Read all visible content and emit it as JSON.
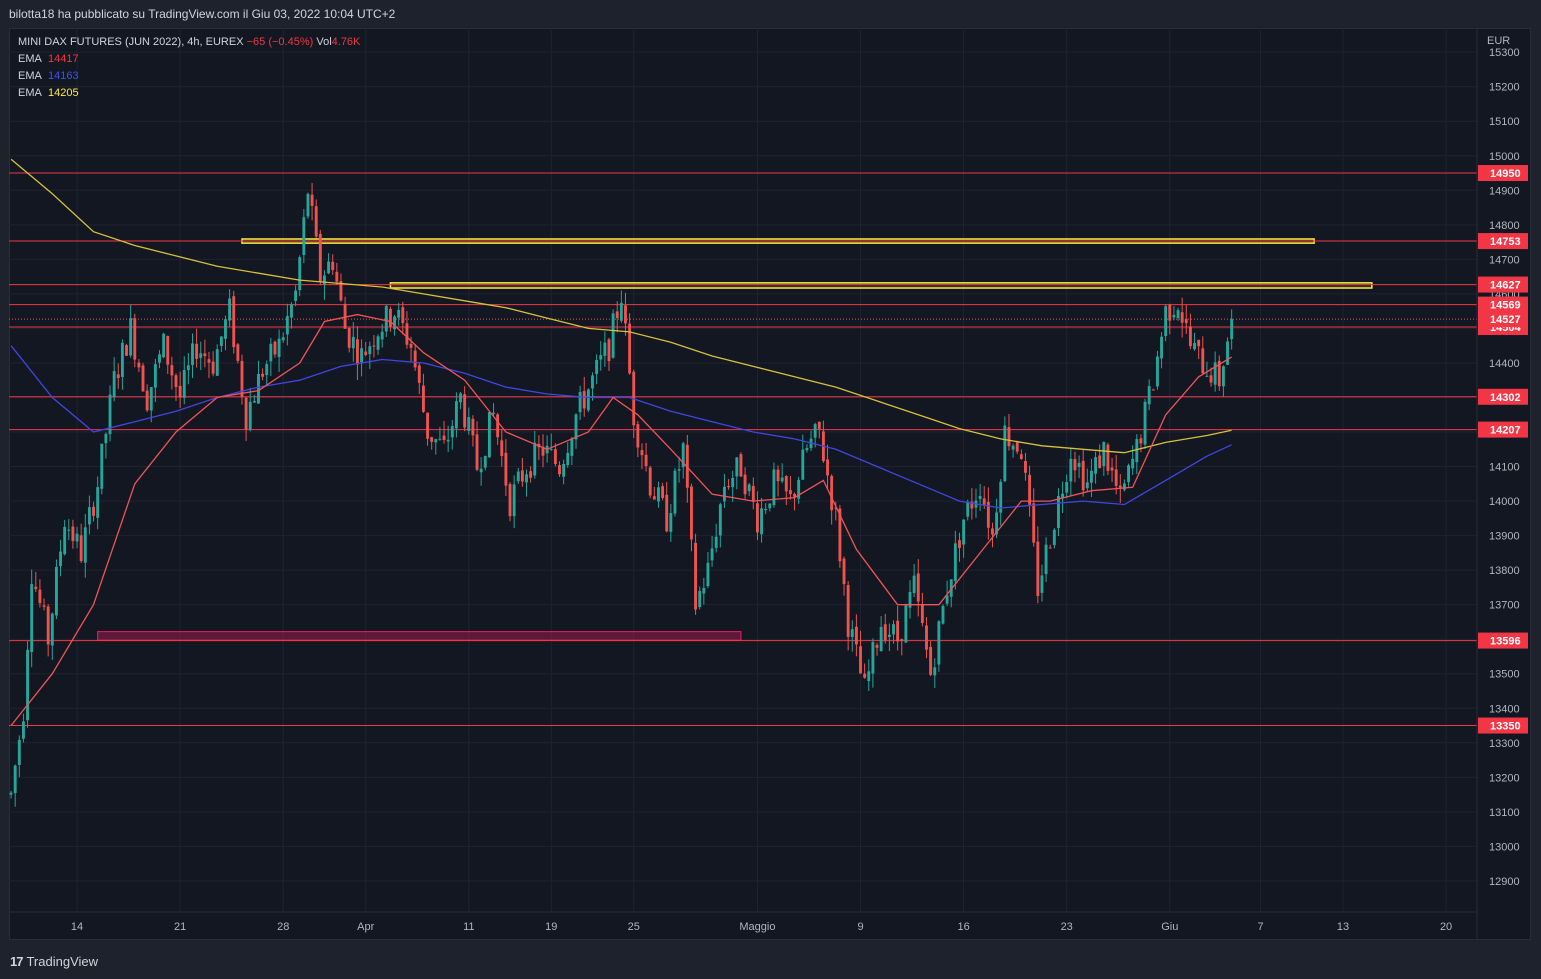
{
  "header": {
    "published_text": "bilotta18 ha pubblicato su TradingView.com il Giu 03, 2022 10:04 UTC+2"
  },
  "legend": {
    "symbol": "MINI DAX FUTURES (JUN 2022), 4h, EUREX",
    "change": "−65 (−0.45%)",
    "vol_label": "Vol",
    "vol_value": "4.76K",
    "emas": [
      {
        "label": "EMA",
        "value": "14417",
        "color": "#f23645"
      },
      {
        "label": "EMA",
        "value": "14163",
        "color": "#3f51f5"
      },
      {
        "label": "EMA",
        "value": "14205",
        "color": "#ffeb3b"
      }
    ]
  },
  "footer": {
    "brand": "TradingView",
    "logo_glyph": "17"
  },
  "colors": {
    "background": "#131722",
    "up": "#26a69a",
    "down": "#ef5350",
    "grid": "#1f2330",
    "hline": "#f23645",
    "ema_fast": "#f05458",
    "ema_mid": "#3f47e0",
    "ema_slow": "#d6c13a",
    "zone_yellow": "#ffeb3b",
    "zone_pink": "#e91e63"
  },
  "chart_data": {
    "type": "candlestick",
    "currency_label": "EUR",
    "ylim": [
      12810,
      15370
    ],
    "y_ticks": [
      12900,
      13000,
      13100,
      13200,
      13300,
      13400,
      13500,
      13600,
      13700,
      13800,
      13900,
      14000,
      14100,
      14200,
      14300,
      14400,
      14500,
      14600,
      14700,
      14800,
      14900,
      15000,
      15100,
      15200,
      15300
    ],
    "x_ticks": [
      "14",
      "21",
      "28",
      "Apr",
      "11",
      "19",
      "25",
      "Maggio",
      "9",
      "16",
      "23",
      "Giu",
      "7",
      "13",
      "20"
    ],
    "x_tick_bars": [
      16,
      41,
      66,
      86,
      111,
      131,
      151,
      181,
      206,
      231,
      256,
      281,
      303,
      323,
      348
    ],
    "bar_count_visible": 356,
    "horizontal_levels": [
      14950,
      14753,
      14627,
      14569,
      14504,
      14302,
      14207,
      13596,
      13350
    ],
    "current_price": 14527,
    "zones": [
      {
        "color": "yellow",
        "start_bar": 56,
        "end_bar": 316,
        "low": 14747,
        "high": 14759
      },
      {
        "color": "yellow",
        "start_bar": 92,
        "end_bar": 330,
        "low": 14617,
        "high": 14632
      },
      {
        "color": "pink",
        "start_bar": 21,
        "end_bar": 177,
        "low": 13597,
        "high": 13622
      }
    ],
    "price_path": [
      [
        0,
        13150
      ],
      [
        3,
        13400
      ],
      [
        5,
        13800
      ],
      [
        9,
        13600
      ],
      [
        13,
        13950
      ],
      [
        17,
        13850
      ],
      [
        21,
        14050
      ],
      [
        25,
        14350
      ],
      [
        29,
        14500
      ],
      [
        33,
        14300
      ],
      [
        37,
        14450
      ],
      [
        41,
        14300
      ],
      [
        45,
        14450
      ],
      [
        49,
        14400
      ],
      [
        53,
        14550
      ],
      [
        57,
        14250
      ],
      [
        61,
        14380
      ],
      [
        65,
        14450
      ],
      [
        69,
        14600
      ],
      [
        72,
        14900
      ],
      [
        75,
        14650
      ],
      [
        78,
        14700
      ],
      [
        81,
        14500
      ],
      [
        85,
        14420
      ],
      [
        89,
        14500
      ],
      [
        93,
        14550
      ],
      [
        97,
        14450
      ],
      [
        101,
        14200
      ],
      [
        105,
        14150
      ],
      [
        109,
        14300
      ],
      [
        113,
        14100
      ],
      [
        117,
        14250
      ],
      [
        121,
        14000
      ],
      [
        125,
        14100
      ],
      [
        129,
        14150
      ],
      [
        133,
        14100
      ],
      [
        137,
        14250
      ],
      [
        141,
        14350
      ],
      [
        145,
        14450
      ],
      [
        148,
        14600
      ],
      [
        151,
        14250
      ],
      [
        155,
        14050
      ],
      [
        159,
        13950
      ],
      [
        163,
        14150
      ],
      [
        166,
        13700
      ],
      [
        169,
        13800
      ],
      [
        173,
        14050
      ],
      [
        177,
        14100
      ],
      [
        181,
        13950
      ],
      [
        185,
        14050
      ],
      [
        189,
        14000
      ],
      [
        193,
        14150
      ],
      [
        196,
        14200
      ],
      [
        200,
        13950
      ],
      [
        203,
        13650
      ],
      [
        207,
        13450
      ],
      [
        211,
        13650
      ],
      [
        215,
        13600
      ],
      [
        219,
        13750
      ],
      [
        223,
        13500
      ],
      [
        227,
        13750
      ],
      [
        231,
        13950
      ],
      [
        235,
        14050
      ],
      [
        238,
        13900
      ],
      [
        241,
        14200
      ],
      [
        245,
        14150
      ],
      [
        249,
        13750
      ],
      [
        253,
        13950
      ],
      [
        257,
        14150
      ],
      [
        261,
        14050
      ],
      [
        265,
        14150
      ],
      [
        269,
        14000
      ],
      [
        273,
        14150
      ],
      [
        277,
        14350
      ],
      [
        280,
        14550
      ],
      [
        283,
        14580
      ],
      [
        286,
        14450
      ],
      [
        289,
        14400
      ],
      [
        293,
        14350
      ],
      [
        296,
        14527
      ]
    ],
    "ema_fast_path": [
      [
        0,
        13350
      ],
      [
        10,
        13500
      ],
      [
        20,
        13700
      ],
      [
        30,
        14050
      ],
      [
        40,
        14200
      ],
      [
        50,
        14300
      ],
      [
        60,
        14320
      ],
      [
        70,
        14400
      ],
      [
        76,
        14520
      ],
      [
        84,
        14540
      ],
      [
        92,
        14520
      ],
      [
        100,
        14430
      ],
      [
        110,
        14350
      ],
      [
        120,
        14200
      ],
      [
        130,
        14150
      ],
      [
        140,
        14200
      ],
      [
        146,
        14300
      ],
      [
        152,
        14250
      ],
      [
        160,
        14150
      ],
      [
        170,
        14020
      ],
      [
        180,
        14000
      ],
      [
        190,
        14010
      ],
      [
        197,
        14060
      ],
      [
        205,
        13860
      ],
      [
        215,
        13700
      ],
      [
        225,
        13700
      ],
      [
        235,
        13850
      ],
      [
        245,
        14000
      ],
      [
        252,
        14000
      ],
      [
        262,
        14030
      ],
      [
        272,
        14040
      ],
      [
        280,
        14250
      ],
      [
        288,
        14360
      ],
      [
        296,
        14417
      ]
    ],
    "ema_mid_path": [
      [
        0,
        14450
      ],
      [
        10,
        14300
      ],
      [
        20,
        14200
      ],
      [
        30,
        14230
      ],
      [
        40,
        14260
      ],
      [
        50,
        14300
      ],
      [
        60,
        14330
      ],
      [
        70,
        14350
      ],
      [
        80,
        14390
      ],
      [
        90,
        14410
      ],
      [
        100,
        14400
      ],
      [
        110,
        14370
      ],
      [
        120,
        14330
      ],
      [
        130,
        14310
      ],
      [
        140,
        14300
      ],
      [
        150,
        14300
      ],
      [
        160,
        14260
      ],
      [
        170,
        14230
      ],
      [
        180,
        14200
      ],
      [
        190,
        14180
      ],
      [
        200,
        14150
      ],
      [
        210,
        14100
      ],
      [
        220,
        14050
      ],
      [
        230,
        14000
      ],
      [
        240,
        13980
      ],
      [
        250,
        13990
      ],
      [
        260,
        14000
      ],
      [
        270,
        13990
      ],
      [
        280,
        14060
      ],
      [
        290,
        14130
      ],
      [
        296,
        14163
      ]
    ],
    "ema_slow_path": [
      [
        0,
        14990
      ],
      [
        10,
        14890
      ],
      [
        20,
        14780
      ],
      [
        30,
        14740
      ],
      [
        40,
        14710
      ],
      [
        50,
        14680
      ],
      [
        60,
        14660
      ],
      [
        70,
        14640
      ],
      [
        80,
        14630
      ],
      [
        90,
        14620
      ],
      [
        100,
        14600
      ],
      [
        110,
        14580
      ],
      [
        120,
        14560
      ],
      [
        130,
        14530
      ],
      [
        140,
        14500
      ],
      [
        150,
        14490
      ],
      [
        160,
        14460
      ],
      [
        170,
        14420
      ],
      [
        180,
        14390
      ],
      [
        190,
        14360
      ],
      [
        200,
        14330
      ],
      [
        210,
        14290
      ],
      [
        220,
        14250
      ],
      [
        230,
        14210
      ],
      [
        240,
        14180
      ],
      [
        250,
        14160
      ],
      [
        260,
        14150
      ],
      [
        270,
        14140
      ],
      [
        280,
        14170
      ],
      [
        290,
        14190
      ],
      [
        296,
        14205
      ]
    ]
  }
}
